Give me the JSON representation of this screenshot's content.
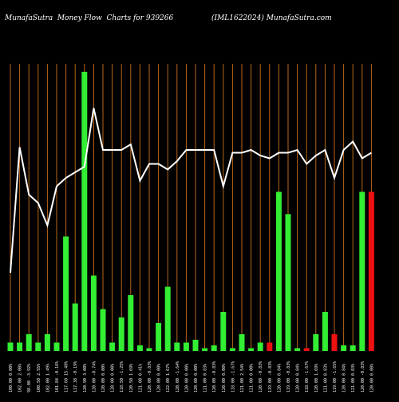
{
  "header": {
    "left": "MunafaSutra  Money Flow  Charts for 939266",
    "right": "(IML1622024) MunafaSutra.com"
  },
  "colors": {
    "background": "#000000",
    "gridline": "#b8661a",
    "up": "#33ee33",
    "down": "#ee1111",
    "line": "#ffffff"
  },
  "chart_data": {
    "type": "bar",
    "grid": true,
    "line_series": {
      "values": [
        28,
        73,
        56,
        53,
        45,
        59,
        62,
        64,
        66,
        87,
        72,
        72,
        72,
        74,
        61,
        67,
        67,
        65,
        68,
        72,
        72,
        72,
        72,
        59,
        71,
        71,
        72,
        70,
        69,
        71,
        71,
        72,
        67,
        70,
        72,
        62,
        72,
        75,
        69,
        71
      ]
    },
    "categories": [
      "100.00  0.00%",
      "102.00  2.00%",
      "98.00  -3.92%",
      "100.50  2.55%",
      "102.00  1.49%",
      "101.84  -0.16%",
      "117.60  15.48%",
      "117.38  -0.19%",
      "120.90  3.00%",
      "120.00  -0.74%",
      "120.00  0.00%",
      "120.00  0.00%",
      "118.50  -1.25%",
      "120.50  1.69%",
      "121.00  0.41%",
      "120.00  -0.83%",
      "120.00  0.00%",
      "122.00  1.67%",
      "120.00  -1.64%",
      "120.00  0.00%",
      "120.00  0.00%",
      "121.00  0.83%",
      "120.00  -0.83%",
      "120.00  0.00%",
      "118.00  -1.67%",
      "121.00  2.54%",
      "121.00  0.00%",
      "120.00  -0.83%",
      "119.00  -0.83%",
      "120.00  0.84%",
      "119.00  -0.83%",
      "120.00  0.84%",
      "118.00  -1.67%",
      "120.00  1.69%",
      "121.00  0.83%",
      "119.00  -1.65%",
      "120.00  0.84%",
      "121.00  0.83%",
      "120.00  -0.83%",
      "120.00  0.00%"
    ],
    "values": [
      3,
      3,
      6,
      3,
      6,
      3,
      41,
      17,
      100,
      27,
      15,
      3,
      12,
      20,
      2,
      1,
      10,
      23,
      3,
      3,
      4,
      1,
      2,
      14,
      1,
      6,
      1,
      3,
      3,
      57,
      49,
      1,
      1,
      6,
      14,
      6,
      2,
      2,
      57,
      57
    ],
    "colors": [
      "up",
      "up",
      "up",
      "up",
      "up",
      "up",
      "up",
      "up",
      "up",
      "up",
      "up",
      "up",
      "up",
      "up",
      "up",
      "up",
      "up",
      "up",
      "up",
      "up",
      "up",
      "up",
      "up",
      "up",
      "up",
      "up",
      "up",
      "up",
      "down",
      "up",
      "up",
      "up",
      "down",
      "up",
      "up",
      "down",
      "up",
      "up",
      "up",
      "down"
    ],
    "ylim": [
      0,
      100
    ]
  }
}
